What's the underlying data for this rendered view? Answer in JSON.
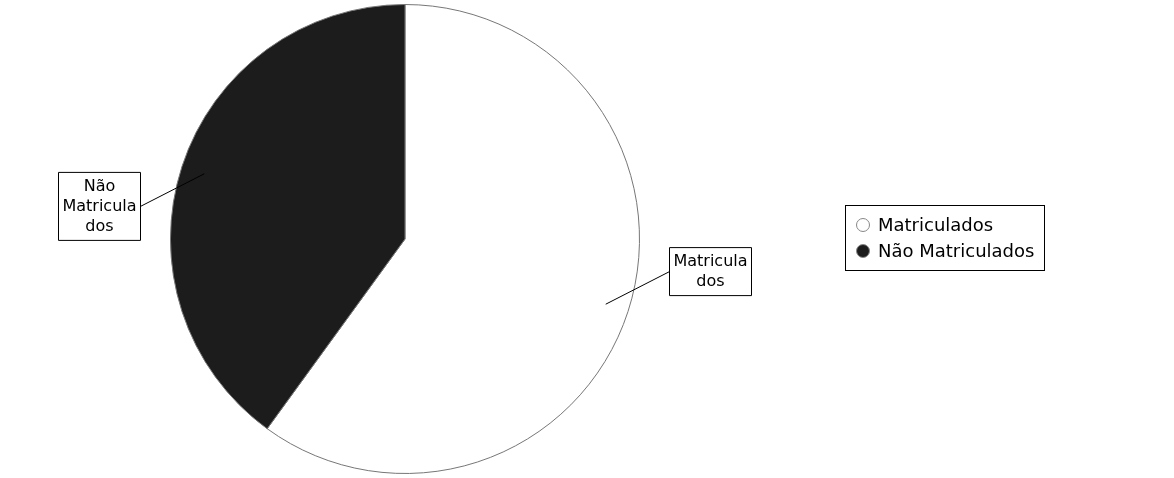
{
  "chart_data": {
    "type": "pie",
    "categories": [
      "Matriculados",
      "Não Matriculados"
    ],
    "values": [
      60,
      40
    ],
    "colors": [
      "#ffffff",
      "#1c1c1c"
    ],
    "legend": "right"
  }
}
